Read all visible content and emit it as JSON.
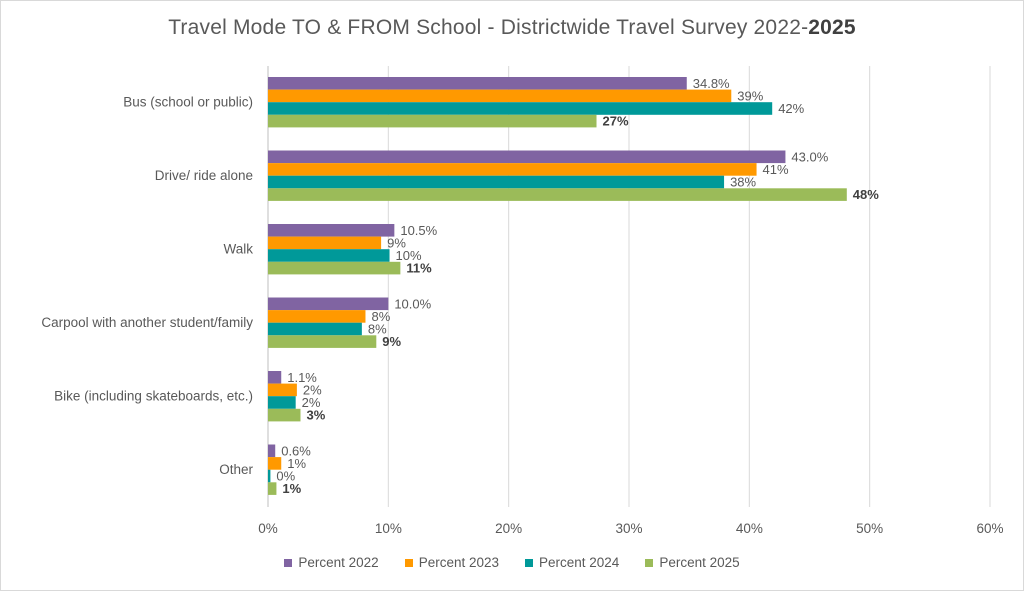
{
  "title": {
    "main": "Travel Mode TO & FROM School - Districtwide Travel Survey 2022-",
    "emphasis": "2025"
  },
  "chart_data": {
    "type": "bar",
    "orientation": "horizontal",
    "categories": [
      "Bus (school or public)",
      "Drive/ ride alone",
      "Walk",
      "Carpool  with another student/family",
      "Bike (including skateboards, etc.)",
      "Other"
    ],
    "series": [
      {
        "name": "Percent 2022",
        "color": "#8064a2",
        "values": [
          34.8,
          43.0,
          10.5,
          10.0,
          1.1,
          0.6
        ],
        "labels": [
          "34.8%",
          "43.0%",
          "10.5%",
          "10.0%",
          "1.1%",
          "0.6%"
        ],
        "bold_labels": false
      },
      {
        "name": "Percent 2023",
        "color": "#ff9900",
        "values": [
          38.5,
          40.6,
          9.4,
          8.1,
          2.4,
          1.1
        ],
        "labels": [
          "39%",
          "41%",
          "9%",
          "8%",
          "2%",
          "1%"
        ],
        "bold_labels": false
      },
      {
        "name": "Percent 2024",
        "color": "#009999",
        "values": [
          41.9,
          37.9,
          10.1,
          7.8,
          2.3,
          0.2
        ],
        "labels": [
          "42%",
          "38%",
          "10%",
          "8%",
          "2%",
          "0%"
        ],
        "bold_labels": false
      },
      {
        "name": "Percent 2025",
        "color": "#9bbb59",
        "values": [
          27.3,
          48.1,
          11.0,
          9.0,
          2.7,
          0.7
        ],
        "labels": [
          "27%",
          "48%",
          "11%",
          "9%",
          "3%",
          "1%"
        ],
        "bold_labels": true
      }
    ],
    "x_ticks": [
      "0%",
      "10%",
      "20%",
      "30%",
      "40%",
      "50%",
      "60%"
    ],
    "xlim": [
      0,
      60
    ],
    "xlabel": "",
    "ylabel": "",
    "grid": "vertical",
    "legend_position": "bottom"
  }
}
